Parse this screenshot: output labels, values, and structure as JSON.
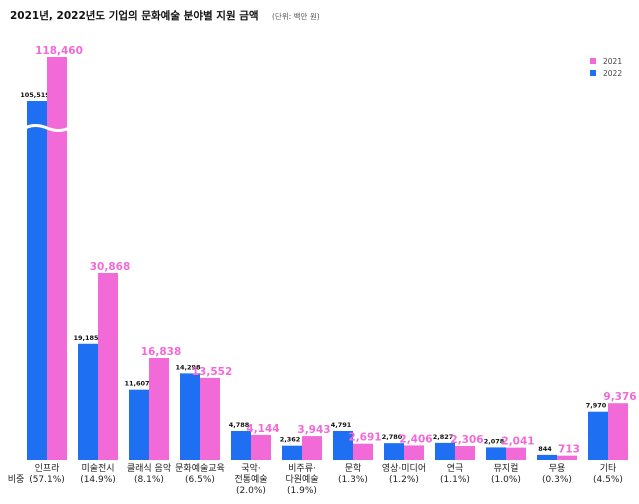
{
  "chart_data": {
    "type": "bar",
    "title": "2021년, 2022년도 기업의 문화예술 분야별 지원 금액",
    "subtitle": "(단위: 백만 원)",
    "categories": [
      "인프라",
      "미술전시",
      "클래식 음악",
      "문화예술교육",
      "국악·\n전통예술",
      "비주류·\n다원예술",
      "문학",
      "영상·미디어",
      "연극",
      "뮤지컬",
      "무용",
      "기타"
    ],
    "share_label": "비중",
    "shares": [
      "(57.1%)",
      "(14.9%)",
      "(8.1%)",
      "(6.5%)",
      "(2.0%)",
      "(1.9%)",
      "(1.3%)",
      "(1.2%)",
      "(1.1%)",
      "(1.0%)",
      "(0.3%)",
      "(4.5%)"
    ],
    "series": [
      {
        "name": "2022",
        "color": "#1f6ff2",
        "values": [
          105519,
          19185,
          11607,
          14298,
          4788,
          2362,
          4791,
          2780,
          2827,
          2078,
          844,
          7970
        ],
        "value_labels": [
          "105,519",
          "19,185",
          "11,607",
          "14,298",
          "4,788",
          "2,362",
          "4,791",
          "2,780",
          "2,827",
          "2,078",
          "844",
          "7,970"
        ]
      },
      {
        "name": "2021",
        "color": "#f26ad8",
        "values": [
          118460,
          30868,
          16838,
          13552,
          4144,
          3943,
          2691,
          2406,
          2306,
          2041,
          713,
          9376
        ],
        "value_labels": [
          "118,460",
          "30,868",
          "16,838",
          "13,552",
          "4,144",
          "3,943",
          "2,691",
          "2,406",
          "2,306",
          "2,041",
          "713",
          "9,376"
        ]
      }
    ],
    "legend": "top-right"
  }
}
